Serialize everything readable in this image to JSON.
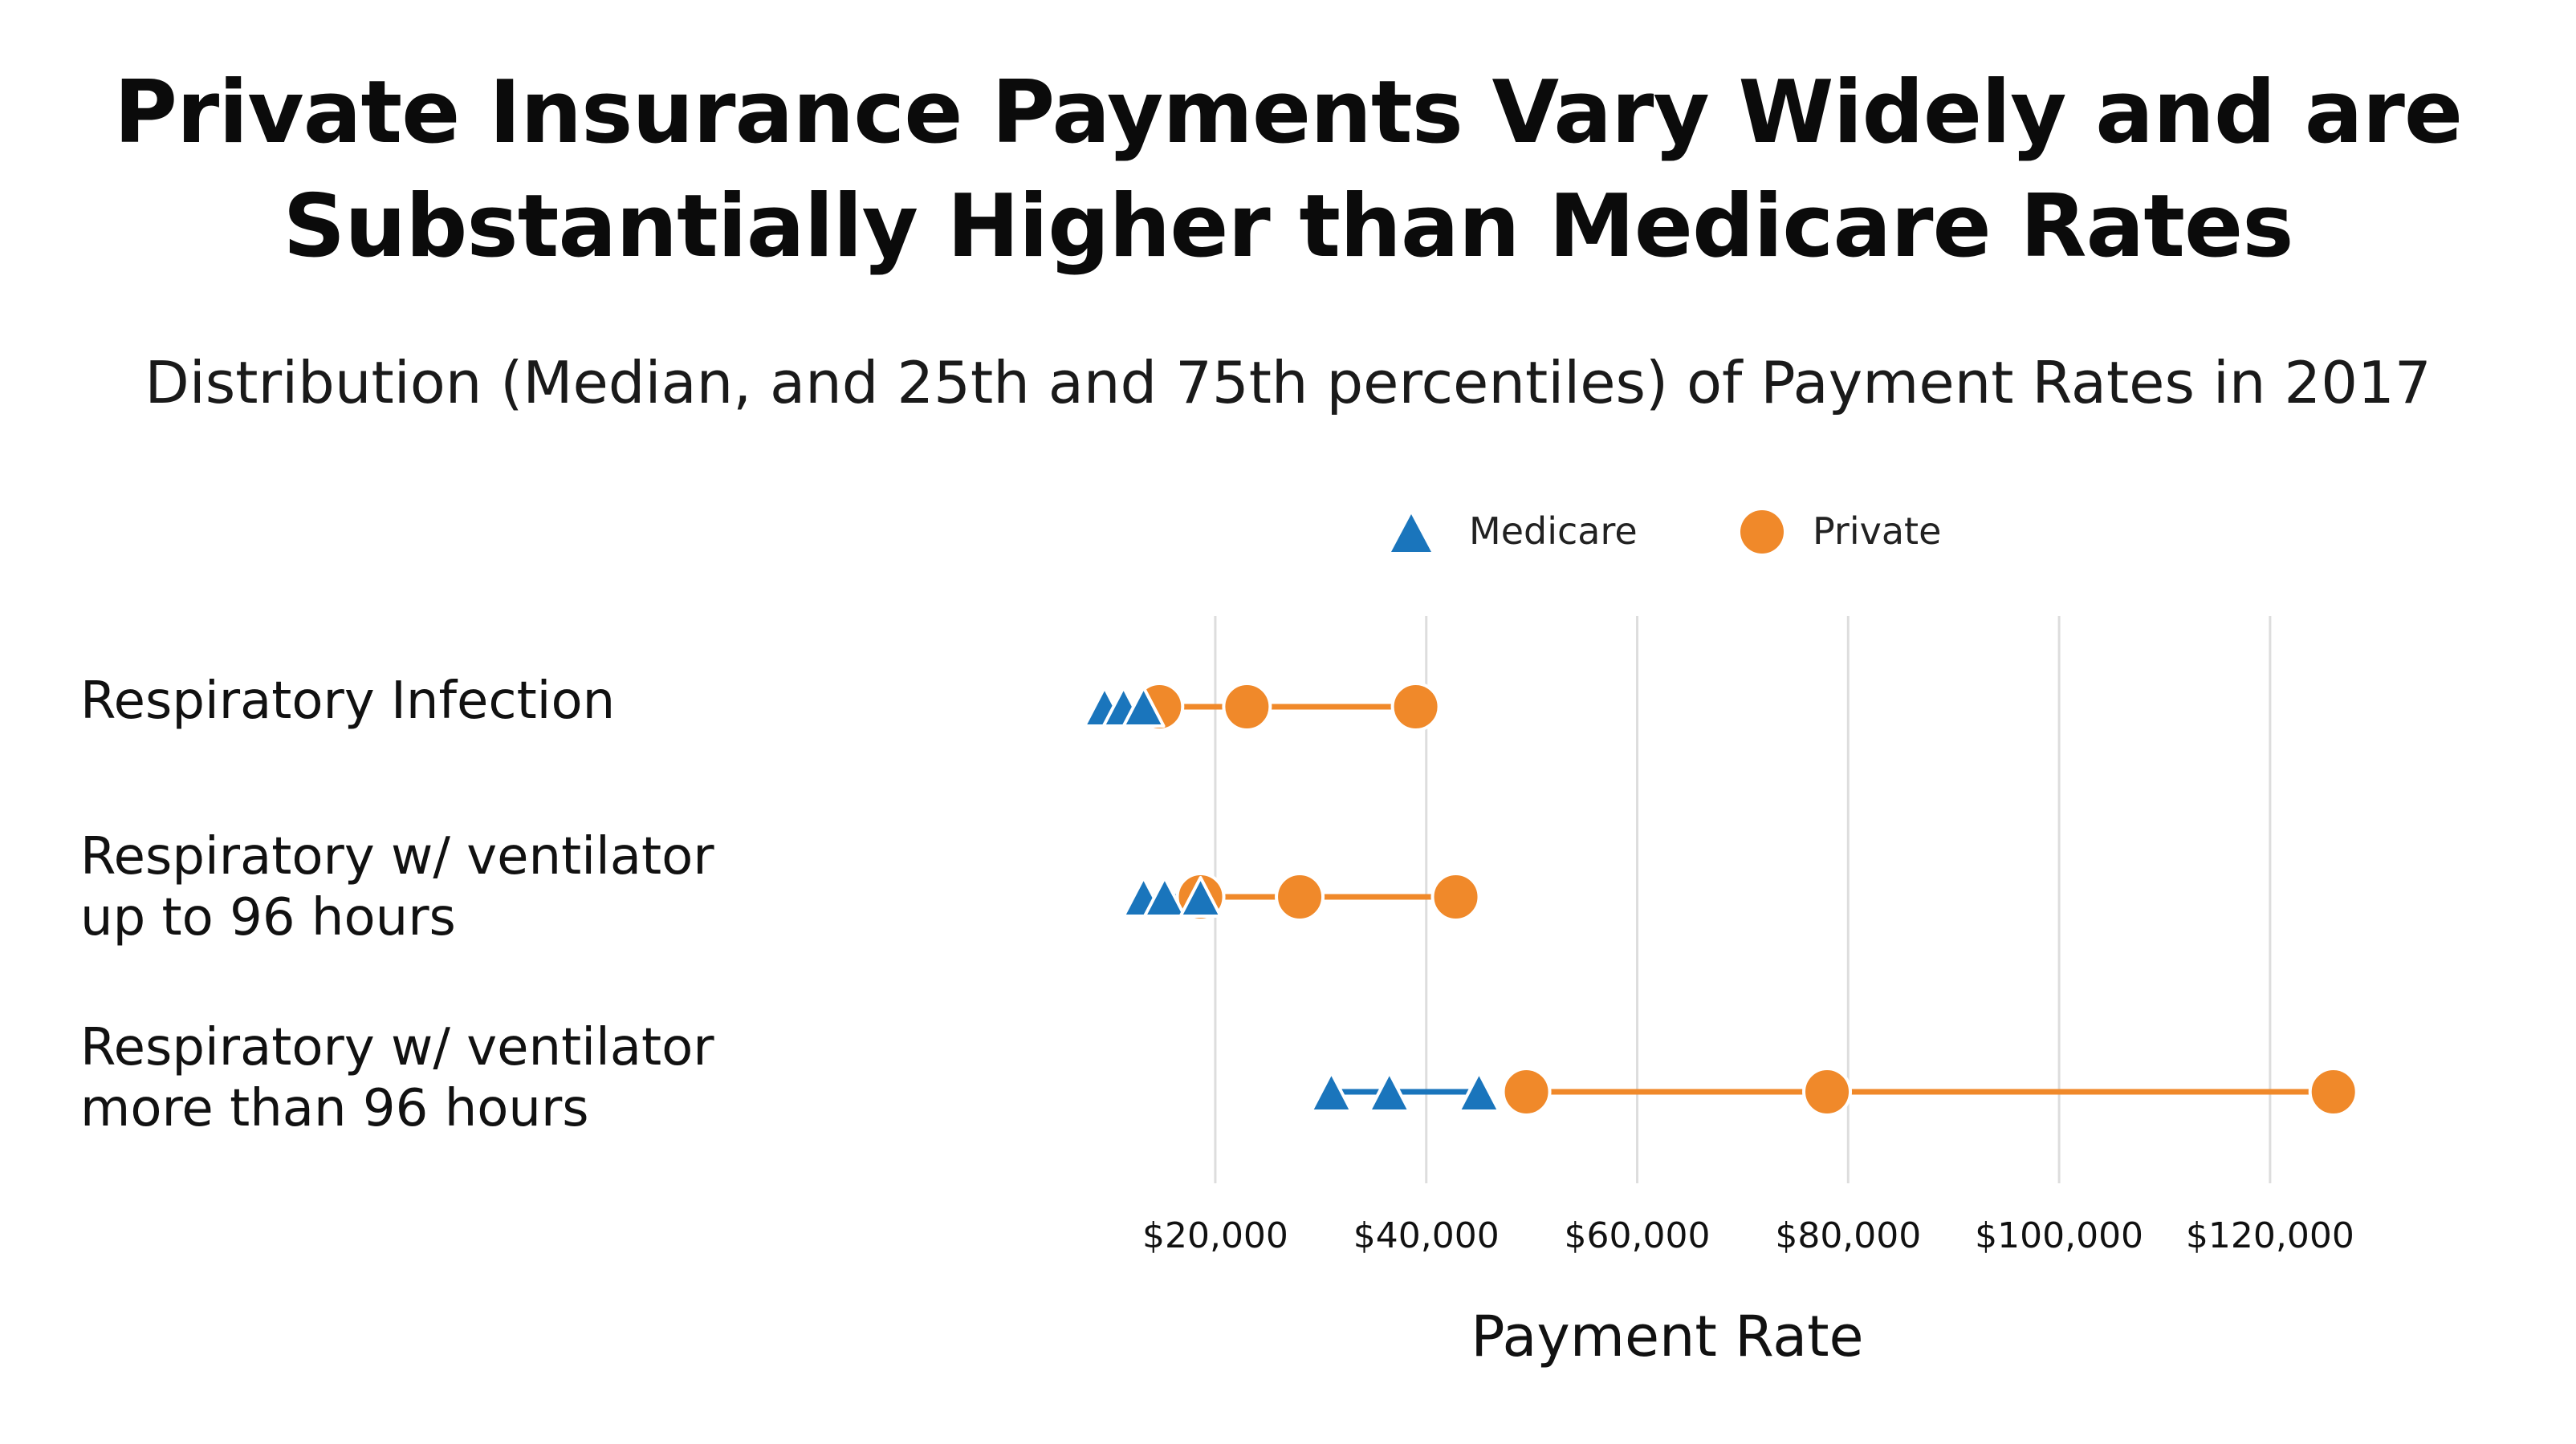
{
  "chart_data": {
    "type": "dumbbell",
    "title_lines": [
      "Private Insurance Payments Vary Widely and are",
      "Substantially Higher than Medicare Rates"
    ],
    "subtitle": "Distribution (Median, and 25th and 75th percentiles) of Payment Rates in 2017",
    "xlabel": "Payment Rate",
    "xlim": [
      6000,
      128000
    ],
    "xticks": [
      20000,
      40000,
      60000,
      80000,
      100000,
      120000
    ],
    "xtick_labels": [
      "$20,000",
      "$40,000",
      "$60,000",
      "$80,000",
      "$100,000",
      "$120,000"
    ],
    "grid": true,
    "legend_position": "top-right",
    "categories": [
      {
        "label_lines": [
          "Respiratory Infection"
        ]
      },
      {
        "label_lines": [
          "Respiratory w/ ventilator",
          "up to 96 hours"
        ]
      },
      {
        "label_lines": [
          "Respiratory w/ ventilator",
          "more than 96 hours"
        ]
      }
    ],
    "series": [
      {
        "name": "Medicare",
        "marker": "triangle",
        "color": "#1a75bc",
        "values": [
          [
            9500,
            11300,
            13200
          ],
          [
            13200,
            15200,
            18600
          ],
          [
            31000,
            36500,
            45000
          ]
        ]
      },
      {
        "name": "Private",
        "marker": "circle",
        "color": "#f0892a",
        "values": [
          [
            14700,
            23000,
            39000
          ],
          [
            18600,
            28000,
            42800
          ],
          [
            49500,
            78000,
            126000
          ]
        ]
      }
    ]
  }
}
